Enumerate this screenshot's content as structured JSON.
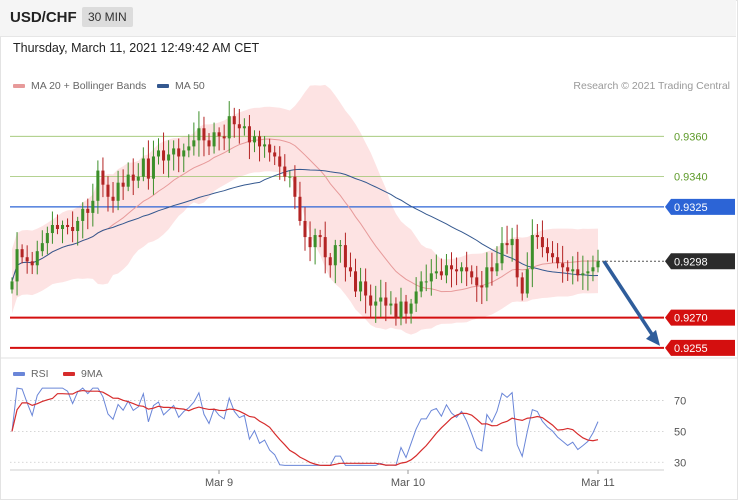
{
  "header": {
    "symbol": "USD/CHF",
    "timeframe": "30 MIN"
  },
  "datetime": "Thursday, March 11, 2021 12:49:42 AM CET",
  "credit": "Research © 2021 Trading Central",
  "colors": {
    "bollinger_fill": "#fde3e3",
    "ma20": "#e79a9a",
    "ma50": "#34588f",
    "bull": "#3c8f2a",
    "bear": "#b32424",
    "resistance_green": "#9cc46d",
    "pivot_blue": "#2c64d6",
    "support_red": "#d40f0f",
    "last_price": "#2b2b2b",
    "forecast_arrow": "#2f5d9b",
    "rsi": "#6a86d8",
    "rsi_ma": "#d62c2c"
  },
  "chart_data": [
    {
      "type": "candlestick",
      "title": "USD/CHF",
      "timeframe": "30 MIN",
      "x_ticks": [
        "Mar 9",
        "Mar 10",
        "Mar 11"
      ],
      "ylim": [
        0.9248,
        0.9382
      ],
      "legend": [
        {
          "name": "MA 20 + Bollinger Bands",
          "color": "#e79a9a"
        },
        {
          "name": "MA 50",
          "color": "#34588f"
        }
      ],
      "last_price": 0.9298,
      "levels": [
        {
          "value": 0.936,
          "label": "0.9360",
          "style": "green-line"
        },
        {
          "value": 0.934,
          "label": "0.9340",
          "style": "green-line"
        },
        {
          "value": 0.9325,
          "label": "0.9325",
          "style": "blue-pivot"
        },
        {
          "value": 0.9298,
          "label": "0.9298",
          "style": "last-price"
        },
        {
          "value": 0.927,
          "label": "0.9270",
          "style": "red-support"
        },
        {
          "value": 0.9255,
          "label": "0.9255",
          "style": "red-support"
        }
      ],
      "forecast": {
        "from": 0.9298,
        "to": 0.9255,
        "direction": "down"
      },
      "close_series": [
        0.9288,
        0.9304,
        0.93,
        0.9298,
        0.9296,
        0.9303,
        0.9307,
        0.9312,
        0.9316,
        0.9314,
        0.9316,
        0.9315,
        0.9313,
        0.9318,
        0.9324,
        0.9322,
        0.9328,
        0.9343,
        0.9336,
        0.933,
        0.9328,
        0.9337,
        0.9335,
        0.9341,
        0.9338,
        0.934,
        0.9349,
        0.9339,
        0.935,
        0.9353,
        0.9348,
        0.9351,
        0.9354,
        0.935,
        0.9353,
        0.9355,
        0.9358,
        0.9364,
        0.9358,
        0.9355,
        0.9362,
        0.936,
        0.9359,
        0.937,
        0.9366,
        0.9364,
        0.9365,
        0.9357,
        0.936,
        0.9355,
        0.9356,
        0.9352,
        0.935,
        0.9345,
        0.934,
        0.934,
        0.933,
        0.9318,
        0.931,
        0.9305,
        0.9311,
        0.931,
        0.93,
        0.9296,
        0.9306,
        0.9306,
        0.9295,
        0.9293,
        0.9283,
        0.9288,
        0.9281,
        0.9276,
        0.9278,
        0.928,
        0.9276,
        0.9277,
        0.927,
        0.9278,
        0.9272,
        0.9277,
        0.9283,
        0.9288,
        0.9288,
        0.9292,
        0.9293,
        0.9291,
        0.9296,
        0.9294,
        0.9293,
        0.9295,
        0.9293,
        0.929,
        0.9286,
        0.9285,
        0.9295,
        0.9293,
        0.9297,
        0.9307,
        0.9306,
        0.9309,
        0.929,
        0.9282,
        0.9294,
        0.9311,
        0.931,
        0.9305,
        0.9302,
        0.93,
        0.9297,
        0.9295,
        0.9293,
        0.9294,
        0.9291,
        0.9292,
        0.9293,
        0.9295,
        0.9298
      ]
    },
    {
      "type": "line",
      "title": "RSI",
      "ylim": [
        25,
        80
      ],
      "y_ticks": [
        70,
        50,
        30
      ],
      "legend": [
        {
          "name": "RSI",
          "color": "#6a86d8"
        },
        {
          "name": "9MA",
          "color": "#d62c2c"
        }
      ],
      "x_ticks": [
        "Mar 9",
        "Mar 10",
        "Mar 11"
      ]
    }
  ]
}
